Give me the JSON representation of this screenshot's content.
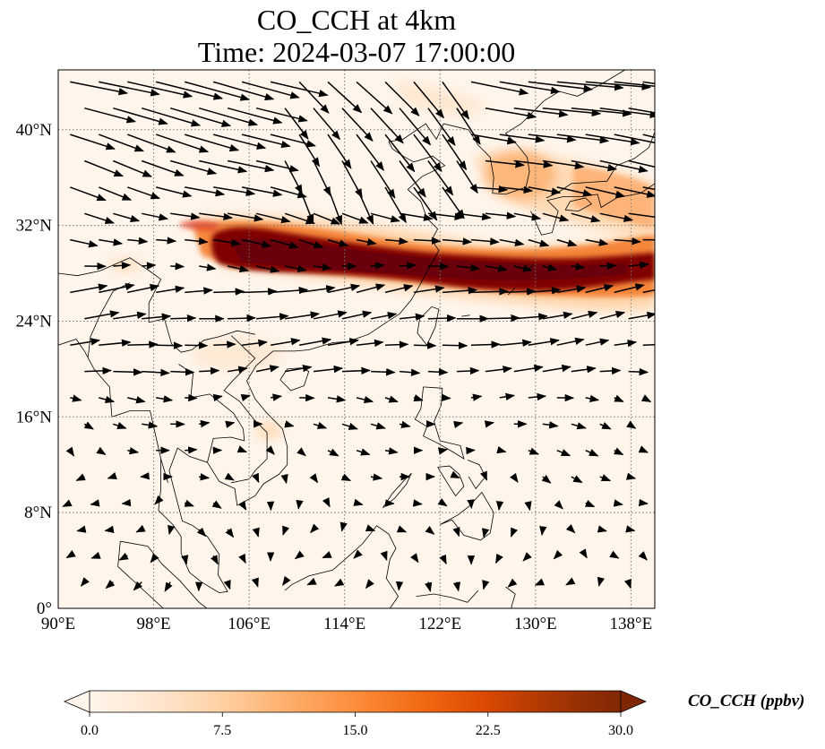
{
  "title": {
    "line1": "CO_CCH at 4km",
    "line2": "Time: 2024-03-07 17:00:00"
  },
  "map": {
    "lon_range": [
      90,
      140
    ],
    "lat_range": [
      0,
      45
    ],
    "lon_ticks": [
      {
        "value": 90,
        "label": "90°E"
      },
      {
        "value": 98,
        "label": "98°E"
      },
      {
        "value": 106,
        "label": "106°E"
      },
      {
        "value": 114,
        "label": "114°E"
      },
      {
        "value": 122,
        "label": "122°E"
      },
      {
        "value": 130,
        "label": "130°E"
      },
      {
        "value": 138,
        "label": "138°E"
      }
    ],
    "lat_ticks": [
      {
        "value": 0,
        "label": "0°"
      },
      {
        "value": 8,
        "label": "8°N"
      },
      {
        "value": 16,
        "label": "16°N"
      },
      {
        "value": 24,
        "label": "24°N"
      },
      {
        "value": 32,
        "label": "32°N"
      },
      {
        "value": 40,
        "label": "40°N"
      }
    ],
    "gridlines": true
  },
  "colorbar": {
    "title": "CO_CCH (ppbv)",
    "min": 0,
    "max": 30,
    "extend": "both",
    "ticks": [
      "0.0",
      "7.5",
      "15.0",
      "22.5",
      "30.0"
    ],
    "colormap": [
      "#fff5eb",
      "#fee6ce",
      "#fdd0a2",
      "#fdae6b",
      "#fd8d3c",
      "#f16913",
      "#d94801",
      "#a63603",
      "#7f2704"
    ]
  },
  "plume": {
    "core_color": "#7f0000",
    "edge_color": "#fdae6b"
  }
}
